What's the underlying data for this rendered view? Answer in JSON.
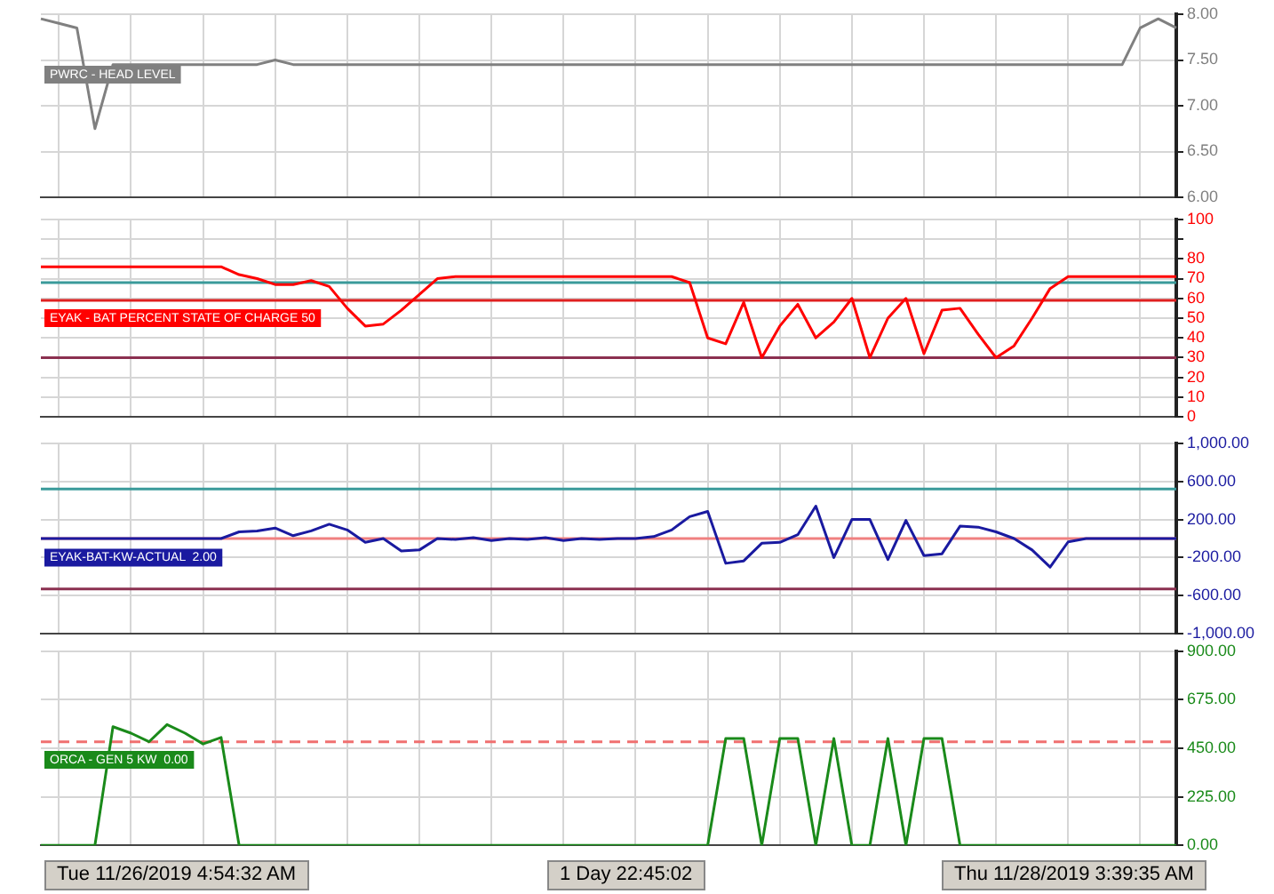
{
  "chart_data": [
    {
      "type": "line",
      "categories": [
        null,
        null,
        null,
        null,
        null,
        null,
        null,
        null,
        null,
        null,
        null,
        null,
        null,
        null,
        null,
        null,
        null,
        null,
        null,
        null,
        null,
        null,
        null,
        null,
        null,
        null,
        null,
        null,
        null,
        null,
        null,
        null,
        null,
        null,
        null,
        null,
        null,
        null,
        null,
        null,
        null,
        null,
        null,
        null,
        null,
        null,
        null,
        null,
        null,
        null,
        null,
        null,
        null,
        null,
        null,
        null,
        null,
        null,
        null,
        null,
        null,
        null,
        null,
        null
      ],
      "ylim": [
        6,
        8
      ],
      "yticks": [
        {
          "value": 6,
          "label": "6.00"
        },
        {
          "value": 6.5,
          "label": "6.50"
        },
        {
          "value": 7,
          "label": "7.00"
        },
        {
          "value": 7.5,
          "label": "7.50"
        },
        {
          "value": 8,
          "label": "8.00"
        }
      ],
      "grid": true,
      "tick_labels": "y",
      "series": [
        {
          "name": "PWRC - HEAD LEVEL",
          "color": "#808080",
          "values": [
            7.95,
            7.9,
            7.85,
            6.75,
            7.45,
            7.45,
            7.45,
            7.45,
            7.45,
            7.45,
            7.45,
            7.45,
            7.45,
            7.5,
            7.45,
            7.45,
            7.45,
            7.45,
            7.45,
            7.45,
            7.45,
            7.45,
            7.45,
            7.45,
            7.45,
            7.45,
            7.45,
            7.45,
            7.45,
            7.45,
            7.45,
            7.45,
            7.45,
            7.45,
            7.45,
            7.45,
            7.45,
            7.45,
            7.45,
            7.45,
            7.45,
            7.45,
            7.45,
            7.45,
            7.45,
            7.45,
            7.45,
            7.45,
            7.45,
            7.45,
            7.45,
            7.45,
            7.45,
            7.45,
            7.45,
            7.45,
            7.45,
            7.45,
            7.45,
            7.45,
            7.45,
            7.85,
            7.95,
            7.85
          ]
        }
      ]
    },
    {
      "type": "line",
      "categories": [
        null,
        null,
        null,
        null,
        null,
        null,
        null,
        null,
        null,
        null,
        null,
        null,
        null,
        null,
        null,
        null,
        null,
        null,
        null,
        null,
        null,
        null,
        null,
        null,
        null,
        null,
        null,
        null,
        null,
        null,
        null,
        null,
        null,
        null,
        null,
        null,
        null,
        null,
        null,
        null,
        null,
        null,
        null,
        null,
        null,
        null,
        null,
        null,
        null,
        null,
        null,
        null,
        null,
        null,
        null,
        null,
        null,
        null,
        null,
        null,
        null,
        null,
        null,
        null
      ],
      "ylim": [
        0,
        100
      ],
      "yticks": [
        0,
        10,
        20,
        30,
        40,
        50,
        60,
        70,
        80,
        {
          "value": 90,
          "label": null
        },
        100
      ],
      "grid": true,
      "tick_labels": "y",
      "ref_lines": [
        {
          "axis": "y",
          "value": 68,
          "color": "#3a9a9a"
        },
        {
          "axis": "y",
          "value": 59,
          "color": "#e02020"
        },
        {
          "axis": "y",
          "value": 30,
          "color": "#8b3050"
        }
      ],
      "series": [
        {
          "name": "EYAK - BAT PERCENT STATE OF CHARGE 50",
          "color": "#ff0000",
          "values": [
            76,
            76,
            76,
            76,
            76,
            76,
            76,
            76,
            76,
            76,
            76,
            72,
            70,
            67,
            67,
            69,
            66,
            55,
            46,
            47,
            54,
            62,
            70,
            71,
            71,
            71,
            71,
            71,
            71,
            71,
            71,
            71,
            71,
            71,
            71,
            71,
            68,
            40,
            37,
            58,
            30,
            46,
            57,
            40,
            48,
            60,
            30,
            50,
            60,
            32,
            54,
            55,
            42,
            30,
            36,
            50,
            65,
            71,
            71,
            71,
            71,
            71,
            71,
            71
          ]
        }
      ]
    },
    {
      "type": "line",
      "categories": [
        null,
        null,
        null,
        null,
        null,
        null,
        null,
        null,
        null,
        null,
        null,
        null,
        null,
        null,
        null,
        null,
        null,
        null,
        null,
        null,
        null,
        null,
        null,
        null,
        null,
        null,
        null,
        null,
        null,
        null,
        null,
        null,
        null,
        null,
        null,
        null,
        null,
        null,
        null,
        null,
        null,
        null,
        null,
        null,
        null,
        null,
        null,
        null,
        null,
        null,
        null,
        null,
        null,
        null,
        null,
        null,
        null,
        null,
        null,
        null,
        null,
        null,
        null,
        null
      ],
      "ylim": [
        -1000,
        1000
      ],
      "yticks": [
        {
          "value": -1000,
          "label": "-1,000.00"
        },
        {
          "value": -600,
          "label": "-600.00"
        },
        {
          "value": -200,
          "label": "-200.00"
        },
        {
          "value": 200,
          "label": "200.00"
        },
        {
          "value": 600,
          "label": "600.00"
        },
        {
          "value": 1000,
          "label": "1,000.00"
        }
      ],
      "grid": true,
      "tick_labels": "y",
      "ref_lines": [
        {
          "axis": "y",
          "value": 520,
          "color": "#3a9a9a"
        },
        {
          "axis": "y",
          "value": 0,
          "color": "#f08080"
        },
        {
          "axis": "y",
          "value": -530,
          "color": "#8b3050"
        }
      ],
      "series": [
        {
          "name": "EYAK-BAT-KW-ACTUAL  2.00",
          "color": "#1a1aa0",
          "values": [
            0,
            0,
            0,
            0,
            0,
            0,
            0,
            0,
            0,
            0,
            0,
            70,
            80,
            110,
            30,
            80,
            150,
            90,
            -40,
            0,
            -130,
            -120,
            0,
            -10,
            10,
            -20,
            0,
            -10,
            10,
            -20,
            0,
            -10,
            0,
            0,
            20,
            90,
            230,
            285,
            -260,
            -235,
            -50,
            -40,
            40,
            340,
            -200,
            200,
            200,
            -220,
            190,
            -180,
            -160,
            130,
            120,
            70,
            0,
            -120,
            -300,
            -35,
            0,
            0,
            0,
            0,
            0,
            0
          ]
        }
      ]
    },
    {
      "type": "line",
      "categories": [
        null,
        null,
        null,
        null,
        null,
        null,
        null,
        null,
        null,
        null,
        null,
        null,
        null,
        null,
        null,
        null,
        null,
        null,
        null,
        null,
        null,
        null,
        null,
        null,
        null,
        null,
        null,
        null,
        null,
        null,
        null,
        null,
        null,
        null,
        null,
        null,
        null,
        null,
        null,
        null,
        null,
        null,
        null,
        null,
        null,
        null,
        null,
        null,
        null,
        null,
        null,
        null,
        null,
        null,
        null,
        null,
        null,
        null,
        null,
        null,
        null,
        null,
        null,
        null
      ],
      "ylim": [
        0,
        900
      ],
      "yticks": [
        {
          "value": 0,
          "label": "0.00"
        },
        {
          "value": 225,
          "label": "225.00"
        },
        {
          "value": 450,
          "label": "450.00"
        },
        {
          "value": 675,
          "label": "675.00"
        },
        {
          "value": 900,
          "label": "900.00"
        }
      ],
      "grid": true,
      "tick_labels": "y",
      "ref_lines": [
        {
          "axis": "y",
          "value": 480,
          "color": "#f07070",
          "line_style": "dashed"
        }
      ],
      "annotations": [
        "Tue 11/26/2019  4:54:32 AM",
        "1 Day 22:45:02",
        "Thu 11/28/2019  3:39:35 AM"
      ],
      "series": [
        {
          "name": "ORCA - GEN 5 KW  0.00",
          "color": "#1a8a1a",
          "values": [
            0,
            0,
            0,
            0,
            550,
            520,
            480,
            560,
            520,
            470,
            500,
            0,
            0,
            0,
            0,
            0,
            0,
            0,
            0,
            0,
            0,
            0,
            0,
            0,
            0,
            0,
            0,
            0,
            0,
            0,
            0,
            0,
            0,
            0,
            0,
            0,
            0,
            0,
            495,
            495,
            0,
            495,
            495,
            0,
            495,
            0,
            0,
            495,
            0,
            495,
            495,
            0,
            0,
            0,
            0,
            0,
            0,
            0,
            0,
            0,
            0,
            0,
            0,
            0
          ]
        }
      ]
    }
  ]
}
